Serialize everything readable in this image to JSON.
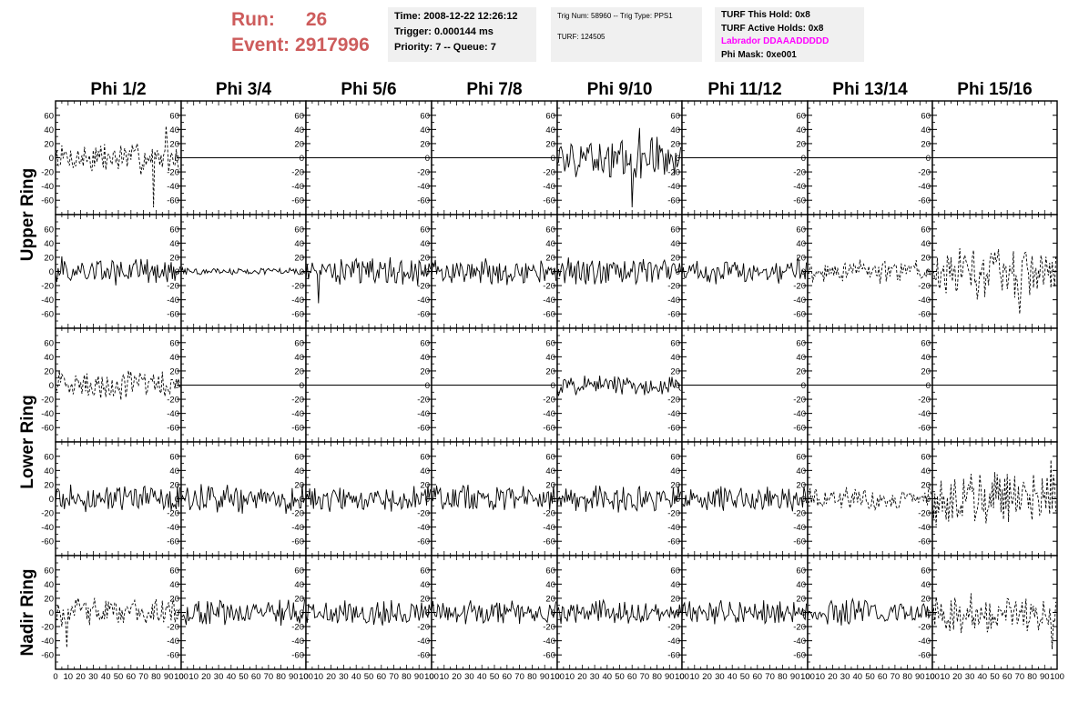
{
  "header": {
    "run_label": "Run:",
    "run_value": "26",
    "event_label": "Event:",
    "event_value": "2917996"
  },
  "info_time": {
    "time": "Time: 2008-12-22 12:26:12",
    "trigger": "Trigger: 0.000144 ms",
    "priority": "Priority: 7 -- Queue: 7"
  },
  "info_trig": {
    "trig": "Trig Num: 58960 -- Trig Type: PPS1",
    "turf": "TURF: 124505"
  },
  "info_turf": {
    "this_hold": "TURF This Hold: 0x8",
    "active_holds": "TURF Active Holds: 0x8",
    "labrador": "Labrador DDAAADDDDD",
    "phi_mask": "Phi Mask: 0xe001",
    "labrador_color": "#ff00ff"
  },
  "colors": {
    "run_text": "#cd5c5c",
    "info_background": "#f0f0f0"
  },
  "chart_data": {
    "type": "line",
    "columns": [
      "Phi 1/2",
      "Phi 3/4",
      "Phi 5/6",
      "Phi 7/8",
      "Phi 9/10",
      "Phi 11/12",
      "Phi 13/14",
      "Phi 15/16"
    ],
    "ring_labels": [
      {
        "label": "Upper Ring",
        "rows": [
          0,
          1
        ]
      },
      {
        "label": "Lower Ring",
        "rows": [
          2,
          3
        ]
      },
      {
        "label": "Nadir Ring",
        "rows": [
          4
        ]
      }
    ],
    "ylim": [
      -70,
      70
    ],
    "yticks": [
      -60,
      -40,
      -20,
      0,
      20,
      40,
      60
    ],
    "xlim": [
      0,
      100
    ],
    "xticks": [
      0,
      10,
      20,
      30,
      40,
      50,
      60,
      70,
      80,
      90,
      100
    ],
    "samples": 100,
    "rows": [
      [
        {
          "style": "dashed",
          "amplitude": 18,
          "spikes": [
            [
              78,
              -70
            ],
            [
              88,
              45
            ]
          ]
        },
        {
          "style": "flat"
        },
        {
          "style": "flat"
        },
        {
          "style": "flat"
        },
        {
          "style": "solid",
          "amplitude": 22,
          "spikes": [
            [
              60,
              -70
            ],
            [
              66,
              42
            ]
          ]
        },
        {
          "style": "flat"
        },
        {
          "style": "flat"
        },
        {
          "style": "flat"
        }
      ],
      [
        {
          "style": "solid",
          "amplitude": 16
        },
        {
          "style": "solid",
          "amplitude": 4
        },
        {
          "style": "solid",
          "amplitude": 16,
          "spikes": [
            [
              10,
              -45
            ]
          ]
        },
        {
          "style": "solid",
          "amplitude": 15
        },
        {
          "style": "solid",
          "amplitude": 15
        },
        {
          "style": "solid",
          "amplitude": 14
        },
        {
          "style": "dashed",
          "amplitude": 13
        },
        {
          "style": "dashed",
          "amplitude": 30,
          "spikes": [
            [
              70,
              -60
            ]
          ]
        }
      ],
      [
        {
          "style": "dashed",
          "amplitude": 17
        },
        {
          "style": "flat"
        },
        {
          "style": "flat"
        },
        {
          "style": "flat"
        },
        {
          "style": "solid",
          "amplitude": 12
        },
        {
          "style": "flat"
        },
        {
          "style": "flat"
        },
        {
          "style": "flat"
        }
      ],
      [
        {
          "style": "solid",
          "amplitude": 15
        },
        {
          "style": "solid",
          "amplitude": 16
        },
        {
          "style": "solid",
          "amplitude": 15
        },
        {
          "style": "solid",
          "amplitude": 15
        },
        {
          "style": "solid",
          "amplitude": 15
        },
        {
          "style": "solid",
          "amplitude": 14
        },
        {
          "style": "dashed",
          "amplitude": 13
        },
        {
          "style": "dashed",
          "amplitude": 28,
          "spikes": [
            [
              95,
              55
            ]
          ]
        }
      ],
      [
        {
          "style": "dashed",
          "amplitude": 17,
          "spikes": [
            [
              9,
              -50
            ]
          ]
        },
        {
          "style": "solid",
          "amplitude": 14
        },
        {
          "style": "solid",
          "amplitude": 14
        },
        {
          "style": "solid",
          "amplitude": 14
        },
        {
          "style": "solid",
          "amplitude": 13
        },
        {
          "style": "solid",
          "amplitude": 14
        },
        {
          "style": "solid",
          "amplitude": 14
        },
        {
          "style": "dashed",
          "amplitude": 22,
          "spikes": [
            [
              96,
              -52
            ]
          ]
        }
      ]
    ]
  }
}
